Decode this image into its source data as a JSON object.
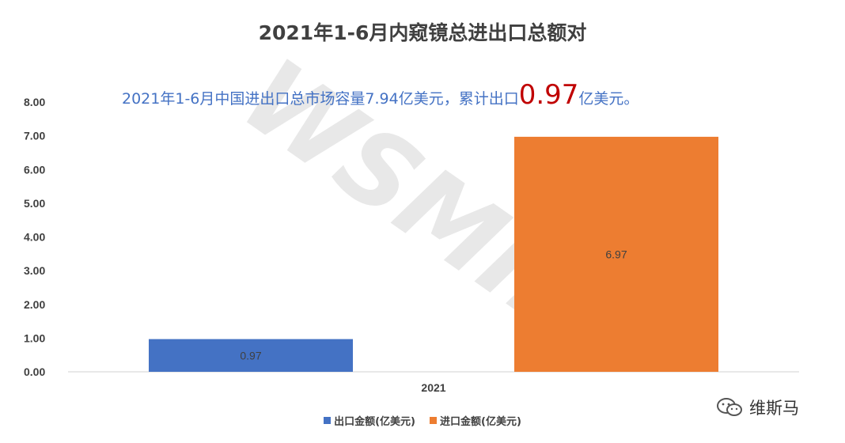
{
  "chart_data": {
    "type": "bar",
    "title": "2021年1-6月内窥镜总进出口总额对",
    "annotation": {
      "prefix": "2021年1-6月中国进出口总市场容量7.94亿美元，累计出口",
      "highlight": "0.97",
      "suffix": "亿美元。"
    },
    "categories": [
      "2021"
    ],
    "series": [
      {
        "name": "出口金额(亿美元)",
        "values": [
          0.97
        ],
        "color": "#4472C4"
      },
      {
        "name": "进口金额(亿美元)",
        "values": [
          6.97
        ],
        "color": "#ED7D31"
      }
    ],
    "data_labels": [
      "0.97",
      "6.97"
    ],
    "ylim": [
      0,
      8
    ],
    "yticks": [
      "0.00",
      "1.00",
      "2.00",
      "3.00",
      "4.00",
      "5.00",
      "6.00",
      "7.00",
      "8.00"
    ],
    "grid": false,
    "legend_position": "bottom",
    "watermark_text": "WSMIN"
  },
  "account": {
    "name": "维斯马",
    "icon": "wechat-icon"
  }
}
